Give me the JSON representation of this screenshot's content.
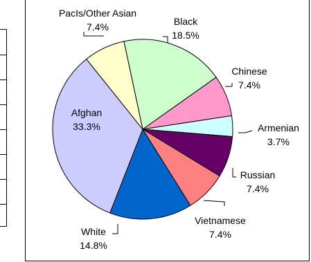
{
  "chart_data": {
    "type": "pie",
    "slices": [
      {
        "label": "Black",
        "value": 18.5,
        "display": "18.5%",
        "color": "#ccffcc"
      },
      {
        "label": "Chinese",
        "value": 7.4,
        "display": "7.4%",
        "color": "#ff99cc"
      },
      {
        "label": "Armenian",
        "value": 3.7,
        "display": "3.7%",
        "color": "#ccffff"
      },
      {
        "label": "Russian",
        "value": 7.4,
        "display": "7.4%",
        "color": "#660066"
      },
      {
        "label": "Vietnamese",
        "value": 7.4,
        "display": "7.4%",
        "color": "#ff8080"
      },
      {
        "label": "White",
        "value": 14.8,
        "display": "14.8%",
        "color": "#0066cc"
      },
      {
        "label": "Afghan",
        "value": 33.3,
        "display": "33.3%",
        "color": "#ccccff"
      },
      {
        "label": "PacIs/Other Asian",
        "value": 7.4,
        "display": "7.4%",
        "color": "#ffffcc"
      }
    ],
    "legend": "none",
    "label_style": "category and percentage beside each slice"
  }
}
